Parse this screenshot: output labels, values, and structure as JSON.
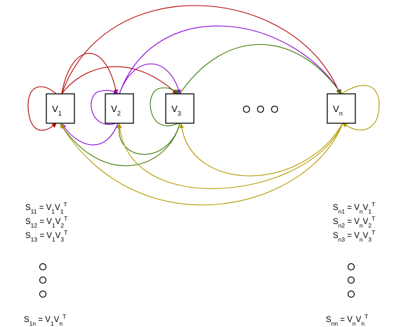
{
  "colors": {
    "red": "#b20000",
    "purple": "#8b00d4",
    "green": "#3a7a00",
    "olive": "#b59a00"
  },
  "nodes": [
    {
      "id": "v1",
      "base": "V",
      "sub": "1"
    },
    {
      "id": "v2",
      "base": "V",
      "sub": "2"
    },
    {
      "id": "v3",
      "base": "V",
      "sub": "3"
    },
    {
      "id": "vn",
      "base": "V",
      "sub": "n"
    }
  ],
  "ellipsis": [
    "○",
    "○",
    "○"
  ],
  "edges": [
    {
      "from": "v1",
      "to": "v1",
      "color": "red"
    },
    {
      "from": "v1",
      "to": "v2",
      "color": "red"
    },
    {
      "from": "v1",
      "to": "v3",
      "color": "red"
    },
    {
      "from": "v1",
      "to": "vn",
      "color": "red"
    },
    {
      "from": "v2",
      "to": "v1",
      "color": "purple"
    },
    {
      "from": "v2",
      "to": "v2",
      "color": "purple"
    },
    {
      "from": "v2",
      "to": "v3",
      "color": "purple"
    },
    {
      "from": "v2",
      "to": "vn",
      "color": "purple"
    },
    {
      "from": "v3",
      "to": "v1",
      "color": "green"
    },
    {
      "from": "v3",
      "to": "v2",
      "color": "green"
    },
    {
      "from": "v3",
      "to": "v3",
      "color": "green"
    },
    {
      "from": "v3",
      "to": "vn",
      "color": "green"
    },
    {
      "from": "vn",
      "to": "v1",
      "color": "olive"
    },
    {
      "from": "vn",
      "to": "v2",
      "color": "olive"
    },
    {
      "from": "vn",
      "to": "v3",
      "color": "olive"
    },
    {
      "from": "vn",
      "to": "vn",
      "color": "olive"
    }
  ],
  "left_equations": [
    {
      "s": "11",
      "a": "1",
      "b": "1",
      "t": "T"
    },
    {
      "s": "12",
      "a": "1",
      "b": "2",
      "t": "T"
    },
    {
      "s": "13",
      "a": "1",
      "b": "3",
      "t": "T"
    }
  ],
  "left_last": {
    "s": "1n",
    "a": "1",
    "b": "n",
    "t": "T"
  },
  "right_equations": [
    {
      "s": "n1",
      "a": "n",
      "b": "1",
      "t": "T"
    },
    {
      "s": "n2",
      "a": "n",
      "b": "2",
      "t": "T"
    },
    {
      "s": "n3",
      "a": "n",
      "b": "3",
      "t": "T"
    }
  ],
  "right_last": {
    "s": "nn",
    "a": "n",
    "b": "n",
    "t": "T"
  }
}
